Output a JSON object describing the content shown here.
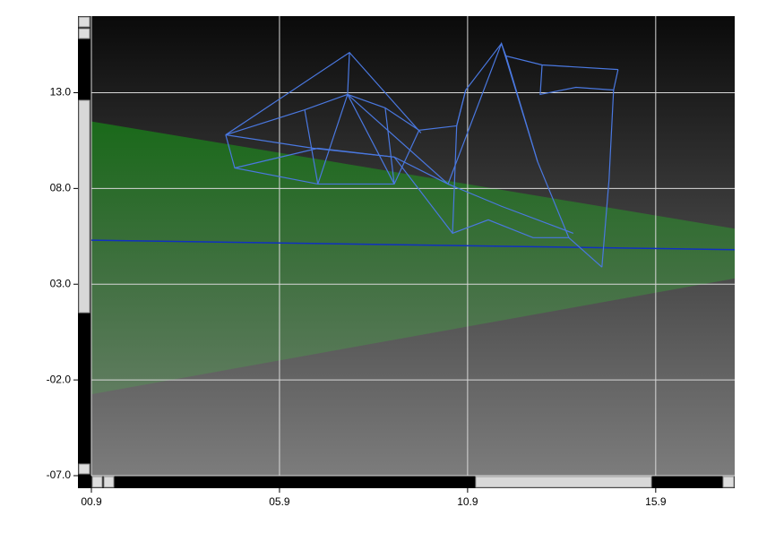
{
  "chart_data": {
    "type": "wireframe",
    "xlim": [
      0.9,
      18.0
    ],
    "ylim": [
      -7.0,
      17.0
    ],
    "xticks": [
      {
        "value": 0.9,
        "label": "00.9"
      },
      {
        "value": 5.9,
        "label": "05.9"
      },
      {
        "value": 10.9,
        "label": "10.9"
      },
      {
        "value": 15.9,
        "label": "15.9"
      }
    ],
    "yticks": [
      {
        "value": -7.0,
        "label": "-07.0"
      },
      {
        "value": -2.0,
        "label": "-02.0"
      },
      {
        "value": 3.0,
        "label": "03.0"
      },
      {
        "value": 8.0,
        "label": "08.0"
      },
      {
        "value": 13.0,
        "label": "13.0"
      }
    ],
    "grid": true,
    "area": {
      "color": "#1f6b1f",
      "x": [
        0.9,
        18.0
      ],
      "upper": [
        11.5,
        5.9
      ],
      "lower": [
        -2.75,
        3.3
      ]
    },
    "line": {
      "color": "#1030c0",
      "x": [
        0.9,
        18.0
      ],
      "y": [
        5.3,
        4.8
      ]
    },
    "wire_color": "#4a78e0",
    "wires": [
      {
        "x": [
          4.47,
          6.57,
          7.71,
          8.71,
          9.61,
          10.61,
          10.85,
          11.8,
          11.92,
          12.88,
          14.9
        ],
        "y": [
          10.8,
          12.11,
          12.91,
          12.21,
          11.04,
          11.27,
          13.14,
          15.57,
          14.92,
          14.45,
          14.21
        ]
      },
      {
        "x": [
          4.47,
          4.71,
          6.92,
          8.95,
          9.61
        ],
        "y": [
          10.8,
          9.07,
          8.23,
          8.23,
          11.04
        ]
      },
      {
        "x": [
          4.47,
          7.76,
          9.66
        ],
        "y": [
          10.8,
          15.1,
          10.9
        ]
      },
      {
        "x": [
          4.71,
          6.92,
          8.95,
          10.5,
          11.45,
          12.64,
          13.59,
          14.47
        ],
        "y": [
          9.07,
          10.1,
          9.64,
          5.66,
          6.36,
          5.43,
          5.43,
          3.89
        ]
      },
      {
        "x": [
          10.85,
          10.61,
          10.5
        ],
        "y": [
          13.14,
          11.27,
          5.66
        ]
      },
      {
        "x": [
          11.92,
          12.76,
          13.59
        ],
        "y": [
          14.92,
          9.4,
          5.43
        ]
      },
      {
        "x": [
          14.9,
          14.78,
          14.66,
          14.47
        ],
        "y": [
          14.21,
          13.14,
          8.47,
          3.89
        ]
      },
      {
        "x": [
          12.88,
          12.83,
          13.78,
          14.78
        ],
        "y": [
          14.45,
          12.91,
          13.28,
          13.14
        ]
      },
      {
        "x": [
          4.47,
          6.8,
          8.95,
          10.38,
          11.8,
          13.71
        ],
        "y": [
          10.8,
          10.1,
          9.64,
          8.23,
          7.07,
          5.66
        ]
      },
      {
        "x": [
          6.57,
          6.92,
          7.71,
          8.95,
          8.71
        ],
        "y": [
          12.11,
          8.23,
          12.91,
          8.23,
          12.21
        ]
      },
      {
        "x": [
          7.76,
          7.71,
          10.38,
          11.8,
          12.76
        ],
        "y": [
          15.1,
          12.91,
          8.23,
          15.57,
          9.4
        ]
      }
    ]
  }
}
